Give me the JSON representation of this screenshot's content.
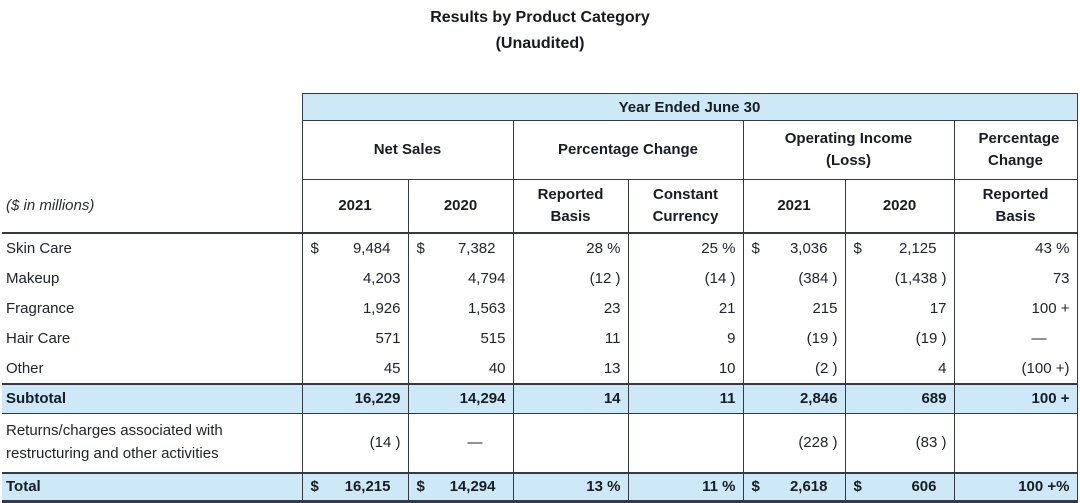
{
  "title": {
    "line1": "Results by Product Category",
    "line2": "(Unaudited)"
  },
  "currency_symbol": "$",
  "colors": {
    "band_blue": "#cde9f8",
    "border": "#343945",
    "text": "#20242c"
  },
  "table": {
    "band_header": "Year Ended June 30",
    "unit_note": "($ in millions)",
    "group_headers": [
      "Net Sales",
      "Percentage Change",
      "Operating Income (Loss)",
      "Percentage Change"
    ],
    "col_headers": [
      "2021",
      "2020",
      "Reported Basis",
      "Constant Currency",
      "2021",
      "2020",
      "Reported Basis"
    ],
    "rows": [
      {
        "label": "Skin Care",
        "cells": [
          "9,484",
          "7,382",
          "28 %",
          "25 %",
          "3,036",
          "2,125",
          "43 %"
        ]
      },
      {
        "label": "Makeup",
        "cells": [
          "4,203",
          "4,794",
          "(12 )",
          "(14 )",
          "(384 )",
          "(1,438 )",
          "73"
        ]
      },
      {
        "label": "Fragrance",
        "cells": [
          "1,926",
          "1,563",
          "23",
          "21",
          "215",
          "17",
          "100 +"
        ]
      },
      {
        "label": "Hair Care",
        "cells": [
          "571",
          "515",
          "11",
          "9",
          "(19 )",
          "(19 )",
          "—"
        ]
      },
      {
        "label": "Other",
        "cells": [
          "45",
          "40",
          "13",
          "10",
          "(2 )",
          "4",
          "(100 +)"
        ]
      },
      {
        "label": "Subtotal",
        "cells": [
          "16,229",
          "14,294",
          "14",
          "11",
          "2,846",
          "689",
          "100 +"
        ]
      },
      {
        "label": "Returns/charges associated with restructuring and other activities",
        "cells": [
          "(14 )",
          "—",
          "",
          "",
          "(228 )",
          "(83 )",
          ""
        ]
      },
      {
        "label": "Total",
        "cells": [
          "16,215",
          "14,294",
          "13 %",
          "11 %",
          "2,618",
          "606",
          "100 +%"
        ]
      }
    ]
  }
}
